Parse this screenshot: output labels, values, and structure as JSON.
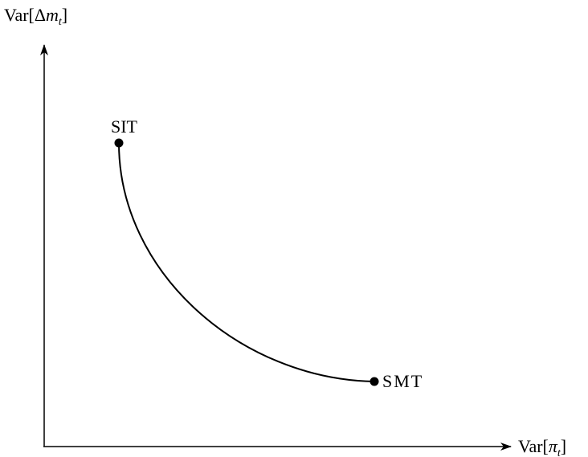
{
  "diagram": {
    "y_axis_label": {
      "prefix": "Var[Δ",
      "var": "m",
      "sub": "t",
      "suffix": "]"
    },
    "x_axis_label": {
      "prefix": "Var[",
      "var": "π",
      "sub": "t",
      "suffix": "]"
    },
    "points": [
      {
        "label": "SIT"
      },
      {
        "label": "SMT"
      }
    ]
  }
}
